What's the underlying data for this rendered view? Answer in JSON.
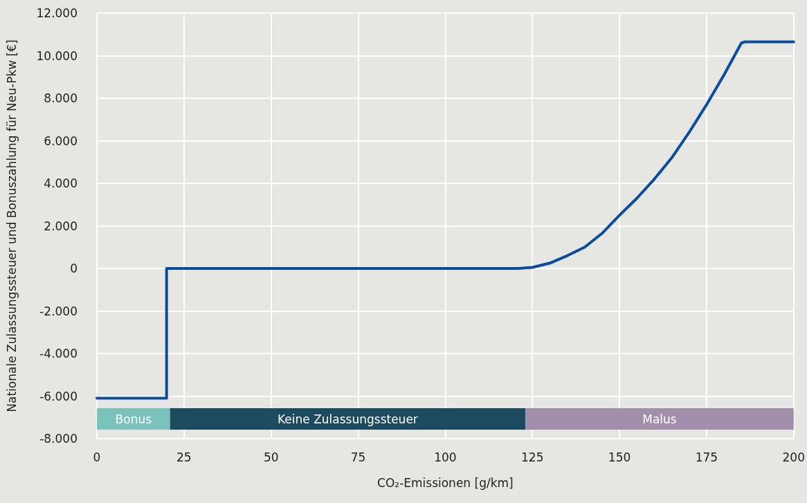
{
  "chart_data": {
    "type": "line",
    "xlabel": "CO₂-Emissionen [g/km]",
    "ylabel": "Nationale Zulassungssteuer und Bonuszahlung für Neu-Pkw [€]",
    "series": [
      {
        "color": "#0a4c9e",
        "x": [
          0,
          20,
          20,
          121,
          125,
          130,
          135,
          140,
          145,
          150,
          155,
          160,
          165,
          170,
          175,
          180,
          185,
          186,
          200
        ],
        "values": [
          -6100,
          -6100,
          0,
          0,
          50,
          250,
          600,
          1000,
          1650,
          2500,
          3300,
          4200,
          5200,
          6400,
          7700,
          9100,
          10600,
          10650,
          10650
        ]
      }
    ],
    "xlim": [
      0,
      200
    ],
    "xticks": [
      0,
      25,
      50,
      75,
      100,
      125,
      150,
      175,
      200
    ],
    "ylim": [
      -8000,
      12000
    ],
    "yticks": [
      {
        "value": -8000,
        "label": "-8.000"
      },
      {
        "value": -6000,
        "label": "-6.000"
      },
      {
        "value": -4000,
        "label": "-4.000"
      },
      {
        "value": -2000,
        "label": "-2.000"
      },
      0,
      {
        "value": 2000,
        "label": "2.000"
      },
      {
        "value": 4000,
        "label": "4.000"
      },
      {
        "value": 6000,
        "label": "6.000"
      },
      {
        "value": 8000,
        "label": "8.000"
      },
      {
        "value": 10000,
        "label": "10.000"
      },
      {
        "value": 12000,
        "label": "12.000"
      }
    ],
    "grid": true,
    "marker": "none",
    "line_style": "solid",
    "bands": [
      {
        "axis": "x",
        "from": 0,
        "to": 21,
        "label": "Bonus",
        "color": "#7bc2bc"
      },
      {
        "axis": "x",
        "from": 21,
        "to": 123,
        "label": "Keine Zulassungssteuer",
        "color": "#1c4a5f"
      },
      {
        "axis": "x",
        "from": 123,
        "to": 200,
        "label": "Malus",
        "color": "#a28fab"
      }
    ]
  }
}
